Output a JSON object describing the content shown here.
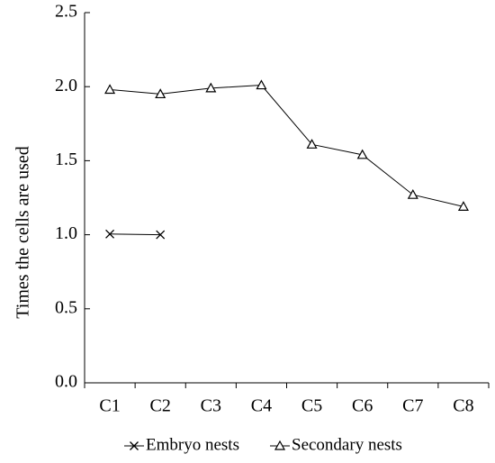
{
  "chart_data": {
    "type": "line",
    "title": "",
    "xlabel": "",
    "ylabel": "Times the cells are used",
    "categories": [
      "C1",
      "C2",
      "C3",
      "C4",
      "C5",
      "C6",
      "C7",
      "C8"
    ],
    "ylim": [
      0,
      2.5
    ],
    "yticks": [
      0.0,
      0.5,
      1.0,
      1.5,
      2.0,
      2.5
    ],
    "ytick_labels": [
      "0.0",
      "0.5",
      "1.0",
      "1.5",
      "2.0",
      "2.5"
    ],
    "grid": false,
    "legend_position": "bottom",
    "series": [
      {
        "name": "Embryo nests",
        "marker": "x",
        "color": "#000000",
        "values": [
          1.005,
          1.0,
          null,
          null,
          null,
          null,
          null,
          null
        ]
      },
      {
        "name": "Secondary nests",
        "marker": "triangle",
        "color": "#000000",
        "values": [
          1.98,
          1.95,
          1.99,
          2.01,
          1.61,
          1.54,
          1.27,
          1.19
        ]
      }
    ]
  }
}
